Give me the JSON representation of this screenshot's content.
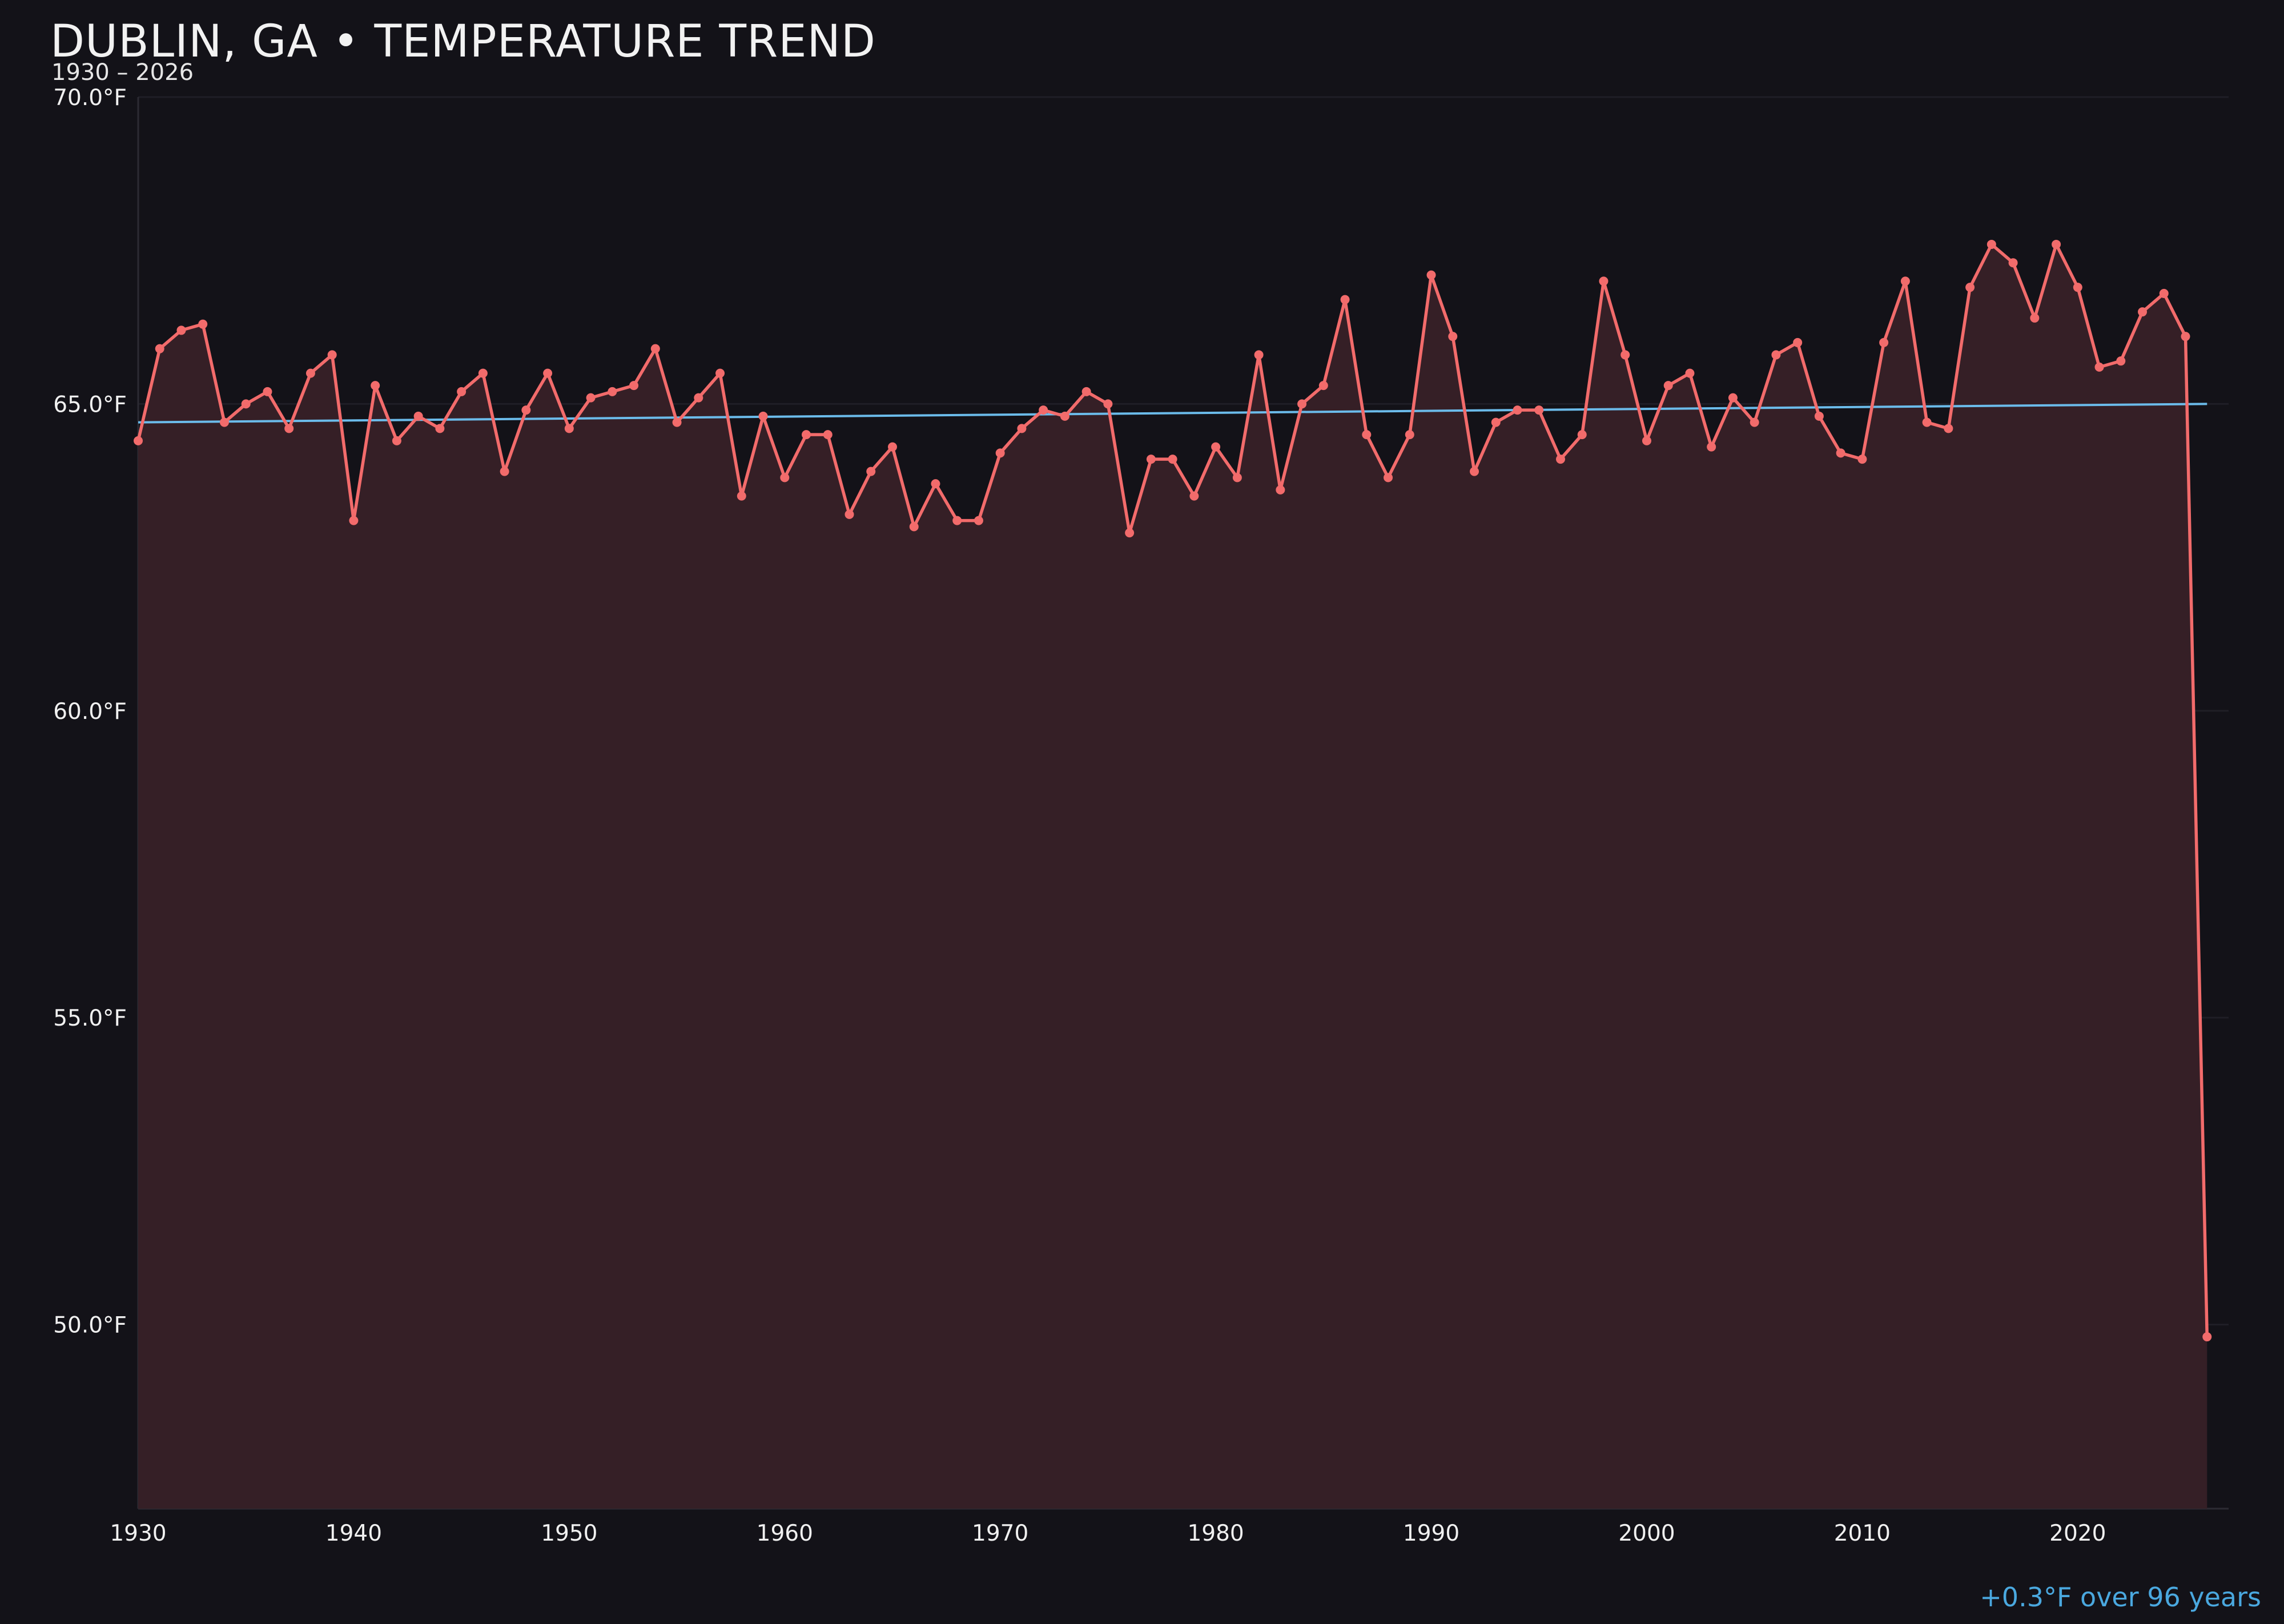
{
  "header": {
    "title": "DUBLIN, GA • TEMPERATURE TREND",
    "subtitle": "1930 – 2026"
  },
  "footer": {
    "trend_text": "+0.3°F over 96 years"
  },
  "colors": {
    "background": "#131218",
    "plot_background": "#131218",
    "series_line": "#f26b6b",
    "series_fill": "#351f26",
    "trend_line": "#6bbbea",
    "grid": "#1f1e26",
    "footer_text": "#4aa8df"
  },
  "chart_data": {
    "type": "line",
    "title": "DUBLIN, GA • TEMPERATURE TREND",
    "subtitle": "1930 – 2026",
    "xlabel": "",
    "ylabel": "",
    "xlim": [
      1930,
      2027
    ],
    "ylim": [
      47.0,
      70.0
    ],
    "x_ticks": [
      1930,
      1940,
      1950,
      1960,
      1970,
      1980,
      1990,
      2000,
      2010,
      2020
    ],
    "x_tick_labels": [
      "1930",
      "1940",
      "1950",
      "1960",
      "1970",
      "1980",
      "1990",
      "2000",
      "2010",
      "2020"
    ],
    "y_ticks": [
      50,
      55,
      60,
      65,
      70
    ],
    "y_tick_labels": [
      "50.0°F",
      "55.0°F",
      "60.0°F",
      "65.0°F",
      "70.0°F"
    ],
    "grid": true,
    "area_fill": true,
    "series": [
      {
        "x": [
          1930,
          1931,
          1932,
          1933,
          1934,
          1935,
          1936,
          1937,
          1938,
          1939,
          1940,
          1941,
          1942,
          1943,
          1944,
          1945,
          1946,
          1947,
          1948,
          1949,
          1950,
          1951,
          1952,
          1953,
          1954,
          1955,
          1956,
          1957,
          1958,
          1959,
          1960,
          1961,
          1962,
          1963,
          1964,
          1965,
          1966,
          1967,
          1968,
          1969,
          1970,
          1971,
          1972,
          1973,
          1974,
          1975,
          1976,
          1977,
          1978,
          1979,
          1980,
          1981,
          1982,
          1983,
          1984,
          1985,
          1986,
          1987,
          1988,
          1989,
          1990,
          1991,
          1992,
          1993,
          1994,
          1995,
          1996,
          1997,
          1998,
          1999,
          2000,
          2001,
          2002,
          2003,
          2004,
          2005,
          2006,
          2007,
          2008,
          2009,
          2010,
          2011,
          2012,
          2013,
          2014,
          2015,
          2016,
          2017,
          2018,
          2019,
          2020,
          2021,
          2022,
          2023,
          2024,
          2025,
          2026
        ],
        "values": [
          64.4,
          65.9,
          66.2,
          66.3,
          64.7,
          65.0,
          65.2,
          64.6,
          65.5,
          65.8,
          63.1,
          65.3,
          64.4,
          64.8,
          64.6,
          65.2,
          65.5,
          63.9,
          64.9,
          65.5,
          64.6,
          65.1,
          65.2,
          65.3,
          65.9,
          64.7,
          65.1,
          65.5,
          63.5,
          64.8,
          63.8,
          64.5,
          64.5,
          63.2,
          63.9,
          64.3,
          63.0,
          63.7,
          63.1,
          63.1,
          64.2,
          64.6,
          64.9,
          64.8,
          65.2,
          65.0,
          62.9,
          64.1,
          64.1,
          63.5,
          64.3,
          63.8,
          65.8,
          63.6,
          65.0,
          65.3,
          66.7,
          64.5,
          63.8,
          64.5,
          67.1,
          66.1,
          63.9,
          64.7,
          64.9,
          64.9,
          64.1,
          64.5,
          67.0,
          65.8,
          64.4,
          65.3,
          65.5,
          64.3,
          65.1,
          64.7,
          65.8,
          66.0,
          64.8,
          64.2,
          64.1,
          66.0,
          67.0,
          64.7,
          64.6,
          66.9,
          67.6,
          67.3,
          66.4,
          67.6,
          66.9,
          65.6,
          65.7,
          66.5,
          66.8,
          66.1,
          49.8
        ]
      },
      {
        "x": [
          1930,
          2026
        ],
        "values": [
          64.7,
          65.0
        ]
      }
    ]
  }
}
